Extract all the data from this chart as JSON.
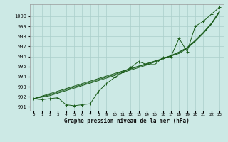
{
  "background_color": "#cce9e5",
  "grid_color": "#aacfcb",
  "line_color": "#1a5c1a",
  "xlabel_text": "Graphe pression niveau de la mer (hPa)",
  "ylim": [
    990.6,
    1001.2
  ],
  "yticks": [
    991,
    992,
    993,
    994,
    995,
    996,
    997,
    998,
    999,
    1000
  ],
  "xlim": [
    -0.5,
    23.5
  ],
  "hours": [
    0,
    1,
    2,
    3,
    4,
    5,
    6,
    7,
    8,
    9,
    10,
    11,
    12,
    13,
    14,
    15,
    16,
    17,
    18,
    19,
    20,
    21,
    22,
    23
  ],
  "pressure_main": [
    991.8,
    991.7,
    991.8,
    991.9,
    991.2,
    991.1,
    991.2,
    991.3,
    992.5,
    993.3,
    993.9,
    994.4,
    994.9,
    995.5,
    995.2,
    995.2,
    995.9,
    996.0,
    997.8,
    996.5,
    999.0,
    999.5,
    1000.2,
    1000.9
  ],
  "pressure_line2": [
    991.8,
    992.05,
    992.3,
    992.55,
    992.8,
    993.05,
    993.3,
    993.55,
    993.8,
    994.05,
    994.3,
    994.55,
    994.8,
    995.05,
    995.3,
    995.55,
    995.8,
    996.05,
    996.3,
    996.8,
    997.5,
    998.3,
    999.2,
    1000.4
  ],
  "pressure_line3": [
    991.8,
    992.0,
    992.2,
    992.45,
    992.7,
    992.95,
    993.2,
    993.45,
    993.7,
    993.95,
    994.2,
    994.5,
    994.75,
    995.0,
    995.25,
    995.5,
    995.8,
    996.1,
    996.45,
    996.9,
    997.6,
    998.4,
    999.3,
    1000.5
  ],
  "pressure_line4": [
    991.8,
    991.95,
    992.1,
    992.35,
    992.6,
    992.85,
    993.1,
    993.35,
    993.6,
    993.85,
    994.1,
    994.4,
    994.65,
    994.9,
    995.15,
    995.45,
    995.75,
    996.05,
    996.4,
    996.85,
    997.55,
    998.35,
    999.25,
    1000.45
  ]
}
